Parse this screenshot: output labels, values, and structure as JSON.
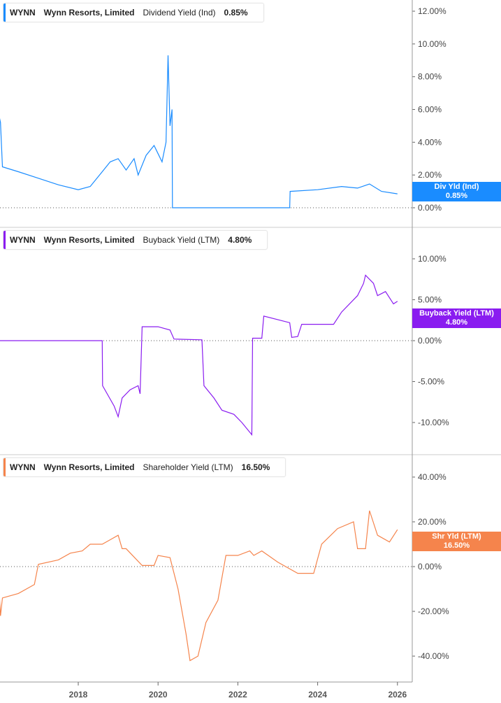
{
  "chart_data": [
    {
      "type": "line",
      "ticker": "WYNN",
      "company": "Wynn Resorts, Limited",
      "metric": "Dividend Yield (Ind)",
      "value_label": "0.85%",
      "tag_label": "Div Yld (Ind)",
      "color": "#1a8cff",
      "ylim": [
        0,
        12
      ],
      "yticks": [
        "0.00%",
        "2.00%",
        "4.00%",
        "6.00%",
        "8.00%",
        "10.00%",
        "12.00%"
      ],
      "ytick_values": [
        0,
        2,
        4,
        6,
        8,
        10,
        12
      ],
      "points": [
        [
          2016.0,
          5.8
        ],
        [
          2016.05,
          5.2
        ],
        [
          2016.1,
          2.5
        ],
        [
          2016.5,
          2.2
        ],
        [
          2017.0,
          1.8
        ],
        [
          2017.5,
          1.4
        ],
        [
          2018.0,
          1.1
        ],
        [
          2018.3,
          1.3
        ],
        [
          2018.6,
          2.2
        ],
        [
          2018.8,
          2.8
        ],
        [
          2019.0,
          3.0
        ],
        [
          2019.2,
          2.3
        ],
        [
          2019.4,
          3.0
        ],
        [
          2019.5,
          2.0
        ],
        [
          2019.7,
          3.2
        ],
        [
          2019.9,
          3.8
        ],
        [
          2020.0,
          3.3
        ],
        [
          2020.1,
          2.8
        ],
        [
          2020.2,
          4.0
        ],
        [
          2020.25,
          9.3
        ],
        [
          2020.3,
          5.0
        ],
        [
          2020.35,
          6.0
        ],
        [
          2020.36,
          0
        ],
        [
          2023.3,
          0
        ],
        [
          2023.31,
          1.0
        ],
        [
          2024.0,
          1.1
        ],
        [
          2024.6,
          1.3
        ],
        [
          2025.0,
          1.2
        ],
        [
          2025.3,
          1.45
        ],
        [
          2025.6,
          1.0
        ],
        [
          2026.0,
          0.85
        ]
      ]
    },
    {
      "type": "line",
      "ticker": "WYNN",
      "company": "Wynn Resorts, Limited",
      "metric": "Buyback Yield (LTM)",
      "value_label": "4.80%",
      "tag_label": "Buyback Yield (LTM)",
      "color": "#8a1cf0",
      "ylim": [
        -12,
        12
      ],
      "yticks": [
        "-10.00%",
        "-5.00%",
        "0.00%",
        "5.00%",
        "10.00%"
      ],
      "ytick_values": [
        -10,
        -5,
        0,
        5,
        10
      ],
      "points": [
        [
          2016.0,
          0
        ],
        [
          2018.6,
          0
        ],
        [
          2018.61,
          -5.5
        ],
        [
          2018.9,
          -8
        ],
        [
          2019.0,
          -9.3
        ],
        [
          2019.1,
          -7
        ],
        [
          2019.3,
          -6
        ],
        [
          2019.5,
          -5.5
        ],
        [
          2019.55,
          -6.5
        ],
        [
          2019.6,
          1.7
        ],
        [
          2020.0,
          1.7
        ],
        [
          2020.3,
          1.3
        ],
        [
          2020.4,
          0.2
        ],
        [
          2021.1,
          0.1
        ],
        [
          2021.15,
          -5.5
        ],
        [
          2021.4,
          -7
        ],
        [
          2021.6,
          -8.5
        ],
        [
          2021.9,
          -9
        ],
        [
          2022.1,
          -10
        ],
        [
          2022.35,
          -11.5
        ],
        [
          2022.37,
          0.3
        ],
        [
          2022.6,
          0.3
        ],
        [
          2022.65,
          3.0
        ],
        [
          2023.3,
          2.2
        ],
        [
          2023.35,
          0.4
        ],
        [
          2023.5,
          0.5
        ],
        [
          2023.6,
          2.0
        ],
        [
          2024.4,
          2.0
        ],
        [
          2024.6,
          3.5
        ],
        [
          2025.0,
          5.5
        ],
        [
          2025.15,
          7.0
        ],
        [
          2025.2,
          8.0
        ],
        [
          2025.4,
          7.0
        ],
        [
          2025.5,
          5.5
        ],
        [
          2025.7,
          6.0
        ],
        [
          2025.9,
          4.5
        ],
        [
          2026.0,
          4.8
        ]
      ]
    },
    {
      "type": "line",
      "ticker": "WYNN",
      "company": "Wynn Resorts, Limited",
      "metric": "Shareholder Yield (LTM)",
      "value_label": "16.50%",
      "tag_label": "Shr Yld (LTM)",
      "color": "#f5844c",
      "ylim": [
        -50,
        50
      ],
      "yticks": [
        "-40.00%",
        "-20.00%",
        "0.00%",
        "20.00%",
        "40.00%"
      ],
      "ytick_values": [
        -40,
        -20,
        0,
        20,
        40
      ],
      "points": [
        [
          2016.0,
          -5
        ],
        [
          2016.05,
          -22
        ],
        [
          2016.1,
          -14
        ],
        [
          2016.5,
          -12
        ],
        [
          2016.9,
          -8
        ],
        [
          2017.0,
          1
        ],
        [
          2017.5,
          3
        ],
        [
          2017.8,
          6
        ],
        [
          2018.1,
          7
        ],
        [
          2018.3,
          10
        ],
        [
          2018.6,
          10
        ],
        [
          2018.8,
          12
        ],
        [
          2019.0,
          14
        ],
        [
          2019.1,
          8
        ],
        [
          2019.2,
          8
        ],
        [
          2019.6,
          0.5
        ],
        [
          2019.9,
          0.5
        ],
        [
          2020.0,
          5
        ],
        [
          2020.3,
          4
        ],
        [
          2020.5,
          -10
        ],
        [
          2020.7,
          -30
        ],
        [
          2020.8,
          -42
        ],
        [
          2021.0,
          -40
        ],
        [
          2021.2,
          -25
        ],
        [
          2021.5,
          -15
        ],
        [
          2021.6,
          -5
        ],
        [
          2021.7,
          5
        ],
        [
          2022.0,
          5
        ],
        [
          2022.3,
          7
        ],
        [
          2022.4,
          5
        ],
        [
          2022.6,
          7
        ],
        [
          2023.0,
          2
        ],
        [
          2023.5,
          -3
        ],
        [
          2023.9,
          -3
        ],
        [
          2024.1,
          10
        ],
        [
          2024.5,
          17
        ],
        [
          2024.9,
          20
        ],
        [
          2025.0,
          8
        ],
        [
          2025.2,
          8
        ],
        [
          2025.3,
          25
        ],
        [
          2025.5,
          14
        ],
        [
          2025.8,
          11
        ],
        [
          2026.0,
          16.5
        ]
      ]
    }
  ],
  "xaxis": {
    "ticks": [
      "2018",
      "2020",
      "2022",
      "2024",
      "2026"
    ],
    "values": [
      2018,
      2020,
      2022,
      2024,
      2026
    ]
  }
}
